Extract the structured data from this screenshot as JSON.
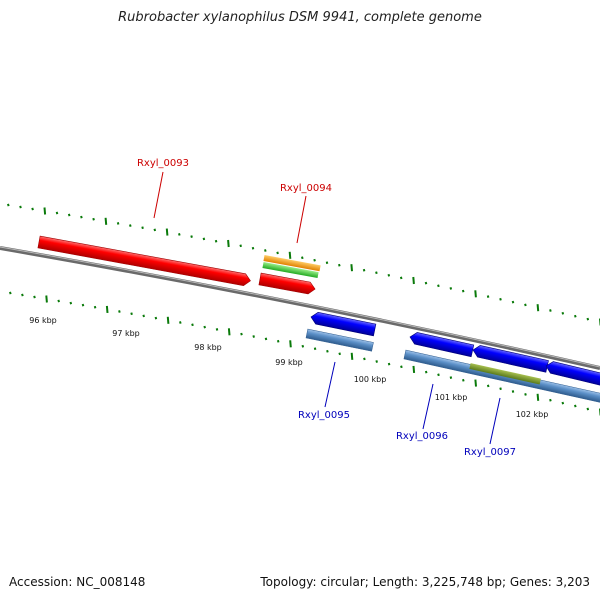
{
  "title": "Rubrobacter xylanophilus DSM 9941, complete genome",
  "footer": {
    "accession": "Accession: NC_008148",
    "summary": "Topology: circular; Length: 3,225,748 bp; Genes: 3,203"
  },
  "colors": {
    "backbone": "#7f7f7f",
    "ticks": "#0a7a0a",
    "forward_gene": "#ff0000",
    "reverse_gene": "#0000ff",
    "forward_label": "#cc0000",
    "reverse_label": "#0000bb",
    "orange_feature": "#ff9900",
    "green_feature": "#33cc33",
    "steel_feature": "#5b8fc7",
    "olive_feature": "#7a9a2a"
  },
  "scale_labels": [
    "96 kbp",
    "97 kbp",
    "98 kbp",
    "99 kbp",
    "100 kbp",
    "101 kbp",
    "102 kbp"
  ],
  "genes": [
    {
      "id": "Rxyl_0093",
      "strand": "forward"
    },
    {
      "id": "Rxyl_0094",
      "strand": "forward"
    },
    {
      "id": "Rxyl_0095",
      "strand": "reverse"
    },
    {
      "id": "Rxyl_0096",
      "strand": "reverse"
    },
    {
      "id": "Rxyl_0097",
      "strand": "reverse"
    }
  ]
}
